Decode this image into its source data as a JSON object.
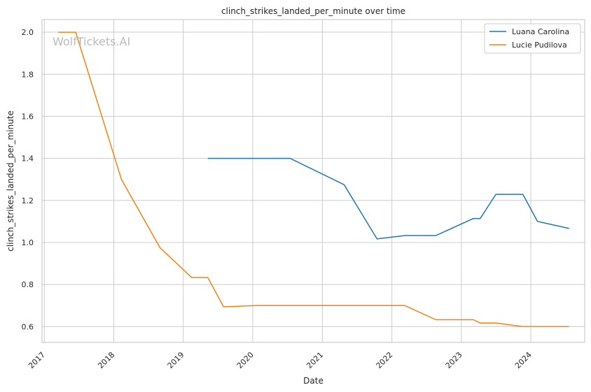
{
  "chart_data": {
    "type": "line",
    "title": "clinch_strikes_landed_per_minute over time",
    "xlabel": "Date",
    "ylabel": "clinch_strikes_landed_per_minute",
    "watermark": "WolfTickets.AI",
    "legend_position": "top-right",
    "grid": true,
    "xlim": [
      "2016-12-20",
      "2024-10-10"
    ],
    "ylim": [
      0.525,
      2.06
    ],
    "x_ticks": [
      "2017",
      "2018",
      "2019",
      "2020",
      "2021",
      "2022",
      "2023",
      "2024"
    ],
    "x_tick_dates": [
      "2017-01-01",
      "2018-01-01",
      "2019-01-01",
      "2020-01-01",
      "2021-01-01",
      "2022-01-01",
      "2023-01-01",
      "2024-01-01"
    ],
    "y_ticks": [
      0.6,
      0.8,
      1.0,
      1.2,
      1.4,
      1.6,
      1.8,
      2.0
    ],
    "series": [
      {
        "name": "Luana Carolina",
        "color": "#1f77b4",
        "points": [
          [
            "2019-05-10",
            1.4
          ],
          [
            "2020-07-15",
            1.4
          ],
          [
            "2021-04-25",
            1.275
          ],
          [
            "2021-10-15",
            1.017
          ],
          [
            "2022-03-10",
            1.033
          ],
          [
            "2022-08-20",
            1.033
          ],
          [
            "2023-03-05",
            1.114
          ],
          [
            "2023-04-10",
            1.114
          ],
          [
            "2023-07-01",
            1.229
          ],
          [
            "2023-11-20",
            1.229
          ],
          [
            "2024-02-05",
            1.1
          ],
          [
            "2024-07-20",
            1.067
          ]
        ]
      },
      {
        "name": "Lucie Pudilova",
        "color": "#ff7f0e",
        "points": [
          [
            "2017-03-15",
            2.0
          ],
          [
            "2017-06-15",
            2.0
          ],
          [
            "2018-02-10",
            1.3
          ],
          [
            "2018-09-01",
            0.975
          ],
          [
            "2019-02-15",
            0.833
          ],
          [
            "2019-05-10",
            0.833
          ],
          [
            "2019-08-01",
            0.694
          ],
          [
            "2020-01-15",
            0.7
          ],
          [
            "2022-03-10",
            0.7
          ],
          [
            "2022-08-20",
            0.633
          ],
          [
            "2023-03-05",
            0.633
          ],
          [
            "2023-04-10",
            0.617
          ],
          [
            "2023-07-01",
            0.617
          ],
          [
            "2023-11-20",
            0.6
          ],
          [
            "2024-07-20",
            0.6
          ]
        ]
      }
    ]
  }
}
